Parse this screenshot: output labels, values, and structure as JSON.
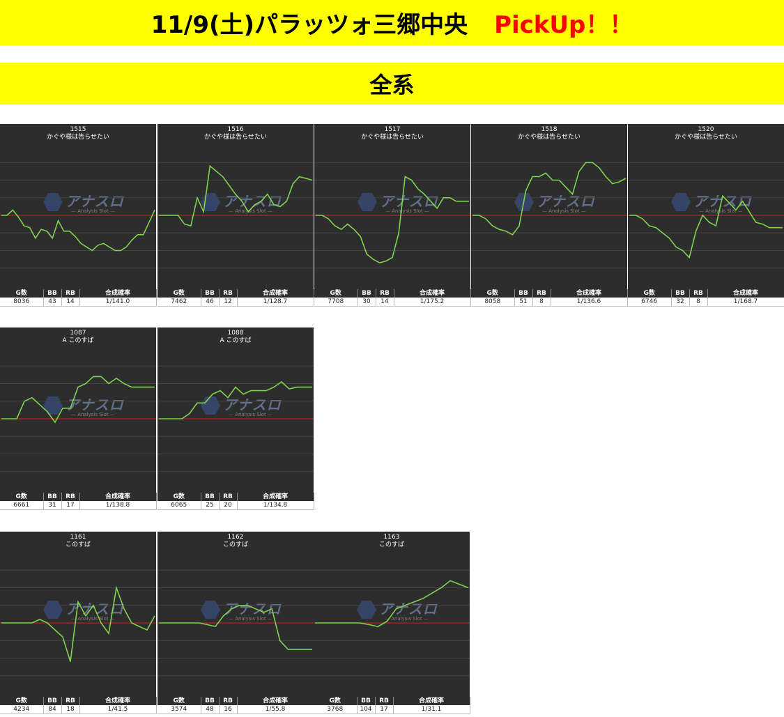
{
  "header": {
    "title": "11/9(土)パラッツォ三郷中央",
    "pickup": "PickUp！！",
    "section": "全系"
  },
  "table_headers": [
    "G数",
    "BB",
    "RB",
    "合成確率"
  ],
  "watermark": {
    "text": "アナスロ",
    "subtitle": "— Analysis Slot —"
  },
  "colors": {
    "banner": "#ffff00",
    "accent": "#ff0000",
    "line": "#7fd34e",
    "baseline": "#cc2222",
    "panel_bg": "#2d2d2d"
  },
  "chart_data": [
    {
      "type": "line",
      "machine": "1515",
      "name": "かぐや様は告らせたい",
      "values": [
        0,
        0,
        3,
        -1,
        -6,
        -7,
        -13,
        -8,
        -9,
        -13,
        -3,
        -9,
        -9,
        -12,
        -16,
        -18,
        -20,
        -17,
        -16,
        -18,
        -20,
        -20,
        -18,
        -14,
        -11,
        -11,
        -4,
        3
      ],
      "stats": {
        "g": "8036",
        "bb": "43",
        "rb": "14",
        "rate": "1/141.0"
      }
    },
    {
      "type": "line",
      "machine": "1516",
      "name": "かぐや様は告らせたい",
      "values": [
        0,
        0,
        0,
        0,
        -5,
        -6,
        10,
        2,
        28,
        25,
        22,
        17,
        12,
        8,
        2,
        6,
        8,
        12,
        6,
        5,
        8,
        18,
        22,
        21,
        20
      ],
      "stats": {
        "g": "7462",
        "bb": "46",
        "rb": "12",
        "rate": "1/128.7"
      }
    },
    {
      "type": "line",
      "machine": "1517",
      "name": "かぐや様は告らせたい",
      "values": [
        0,
        0,
        -2,
        -6,
        -8,
        -5,
        -8,
        -12,
        -22,
        -25,
        -27,
        -26,
        -24,
        -10,
        22,
        20,
        15,
        12,
        8,
        4,
        10,
        10,
        8,
        8,
        8
      ],
      "stats": {
        "g": "7708",
        "bb": "30",
        "rb": "14",
        "rate": "1/175.2"
      }
    },
    {
      "type": "line",
      "machine": "1518",
      "name": "かぐや様は告らせたい",
      "values": [
        0,
        0,
        -2,
        -6,
        -8,
        -9,
        -11,
        -6,
        14,
        22,
        22,
        24,
        20,
        20,
        16,
        12,
        25,
        30,
        30,
        27,
        22,
        18,
        19,
        21
      ],
      "stats": {
        "g": "8058",
        "bb": "51",
        "rb": "8",
        "rate": "1/136.6"
      }
    },
    {
      "type": "line",
      "machine": "1520",
      "name": "かぐや様は告らせたい",
      "values": [
        0,
        0,
        -2,
        -6,
        -7,
        -10,
        -13,
        -18,
        -20,
        -24,
        -9,
        0,
        -4,
        -6,
        11,
        7,
        3,
        8,
        2,
        -4,
        -5,
        -7,
        -7,
        -7
      ],
      "stats": {
        "g": "6746",
        "bb": "32",
        "rb": "8",
        "rate": "1/168.7"
      }
    },
    {
      "type": "line",
      "machine": "1087",
      "name": "A このすば",
      "values": [
        0,
        0,
        0,
        10,
        12,
        8,
        4,
        -2,
        6,
        6,
        18,
        20,
        24,
        24,
        20,
        23,
        20,
        18,
        18,
        18,
        18
      ],
      "stats": {
        "g": "6661",
        "bb": "31",
        "rb": "17",
        "rate": "1/138.8"
      }
    },
    {
      "type": "line",
      "machine": "1088",
      "name": "A このすば",
      "values": [
        0,
        0,
        0,
        0,
        3,
        9,
        9,
        14,
        16,
        12,
        18,
        14,
        16,
        16,
        16,
        18,
        21,
        17,
        18,
        18,
        18
      ],
      "stats": {
        "g": "6065",
        "bb": "25",
        "rb": "20",
        "rate": "1/134.8"
      }
    },
    {
      "type": "line",
      "machine": "1161",
      "name": "このすば",
      "values": [
        0,
        0,
        0,
        0,
        0,
        2,
        0,
        -4,
        -8,
        -22,
        12,
        4,
        10,
        0,
        -6,
        20,
        8,
        0,
        -2,
        -4,
        4
      ],
      "stats": {
        "g": "4234",
        "bb": "84",
        "rb": "18",
        "rate": "1/41.5"
      }
    },
    {
      "type": "line",
      "machine": "1162",
      "name": "このすば",
      "values": [
        0,
        0,
        0,
        0,
        0,
        0,
        -1,
        -2,
        4,
        8,
        10,
        10,
        8,
        6,
        8,
        -10,
        -15,
        -15,
        -15,
        -15
      ],
      "stats": {
        "g": "3574",
        "bb": "48",
        "rb": "16",
        "rate": "1/55.8"
      }
    },
    {
      "type": "line",
      "machine": "1163",
      "name": "このすば",
      "values": [
        0,
        0,
        0,
        0,
        0,
        0,
        -1,
        -2,
        1,
        8,
        10,
        12,
        14,
        17,
        20,
        24,
        22,
        20
      ],
      "stats": {
        "g": "3768",
        "bb": "104",
        "rb": "17",
        "rate": "1/31.1"
      }
    }
  ]
}
